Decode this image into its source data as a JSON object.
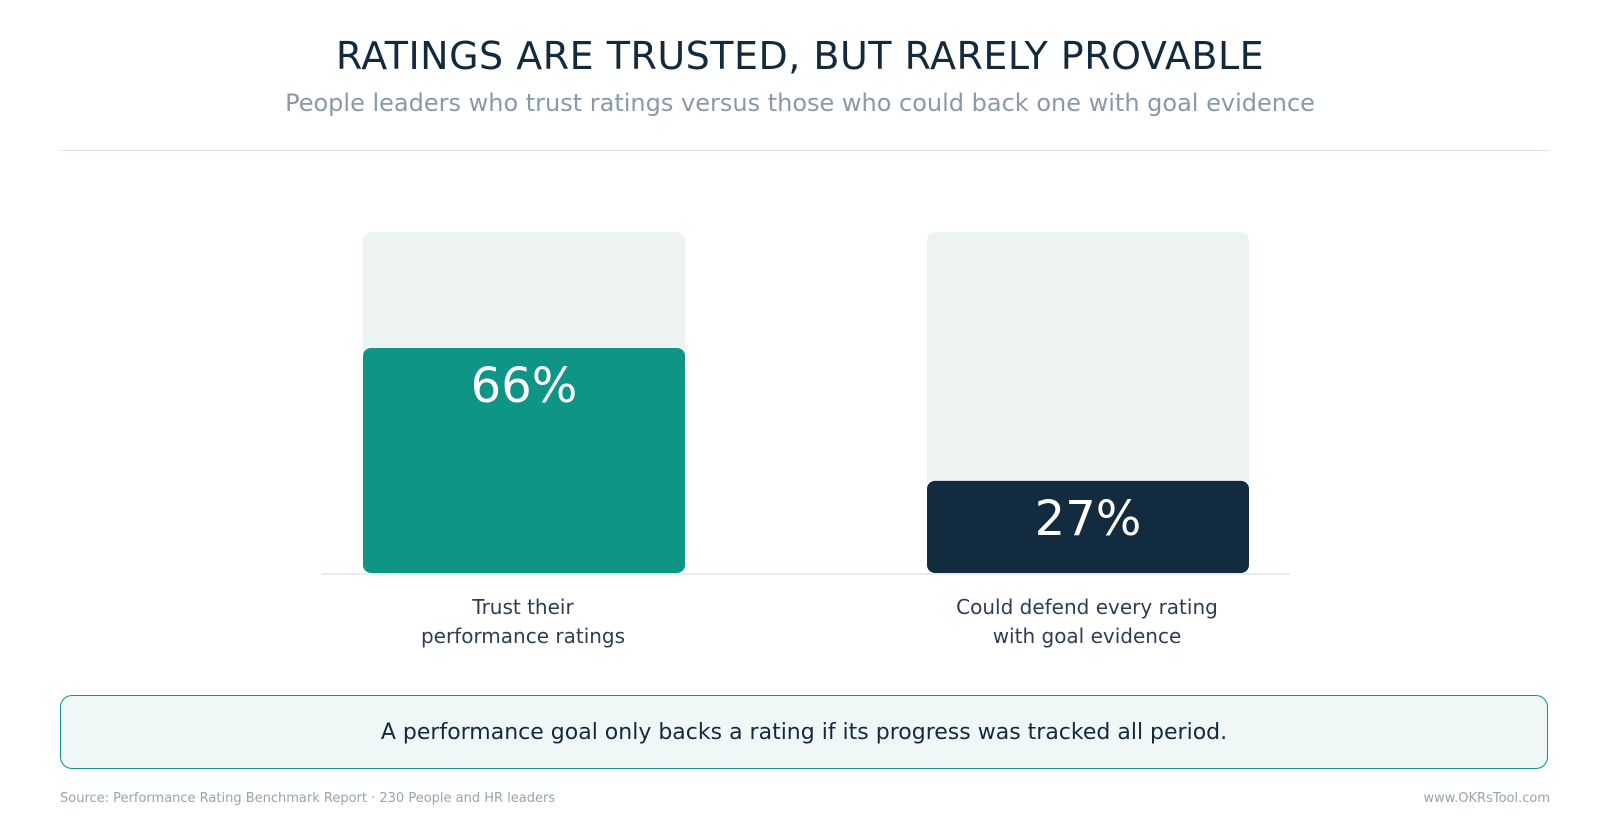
{
  "header": {
    "title": "RATINGS ARE TRUSTED, BUT RARELY PROVABLE",
    "subtitle": "People leaders who trust ratings versus those who could back one with goal evidence"
  },
  "chart_data": {
    "type": "bar",
    "title": "RATINGS ARE TRUSTED, BUT RARELY PROVABLE",
    "subtitle": "People leaders who trust ratings versus those who could back one with goal evidence",
    "categories": [
      "Trust their\nperformance ratings",
      "Could defend every rating\nwith goal evidence"
    ],
    "values": [
      66,
      27
    ],
    "value_labels": [
      "66%",
      "27%"
    ],
    "ylim": [
      0,
      100
    ],
    "colors": [
      "#0e9585",
      "#122b3e"
    ],
    "track_color": "#edf3f3",
    "grid": false,
    "legend": "none"
  },
  "callout": {
    "text": "A performance goal only backs a rating if its progress was tracked all period."
  },
  "footer": {
    "source": "Source: Performance Rating Benchmark Report · 230 People and HR leaders",
    "site": "www.OKRsTool.com"
  }
}
